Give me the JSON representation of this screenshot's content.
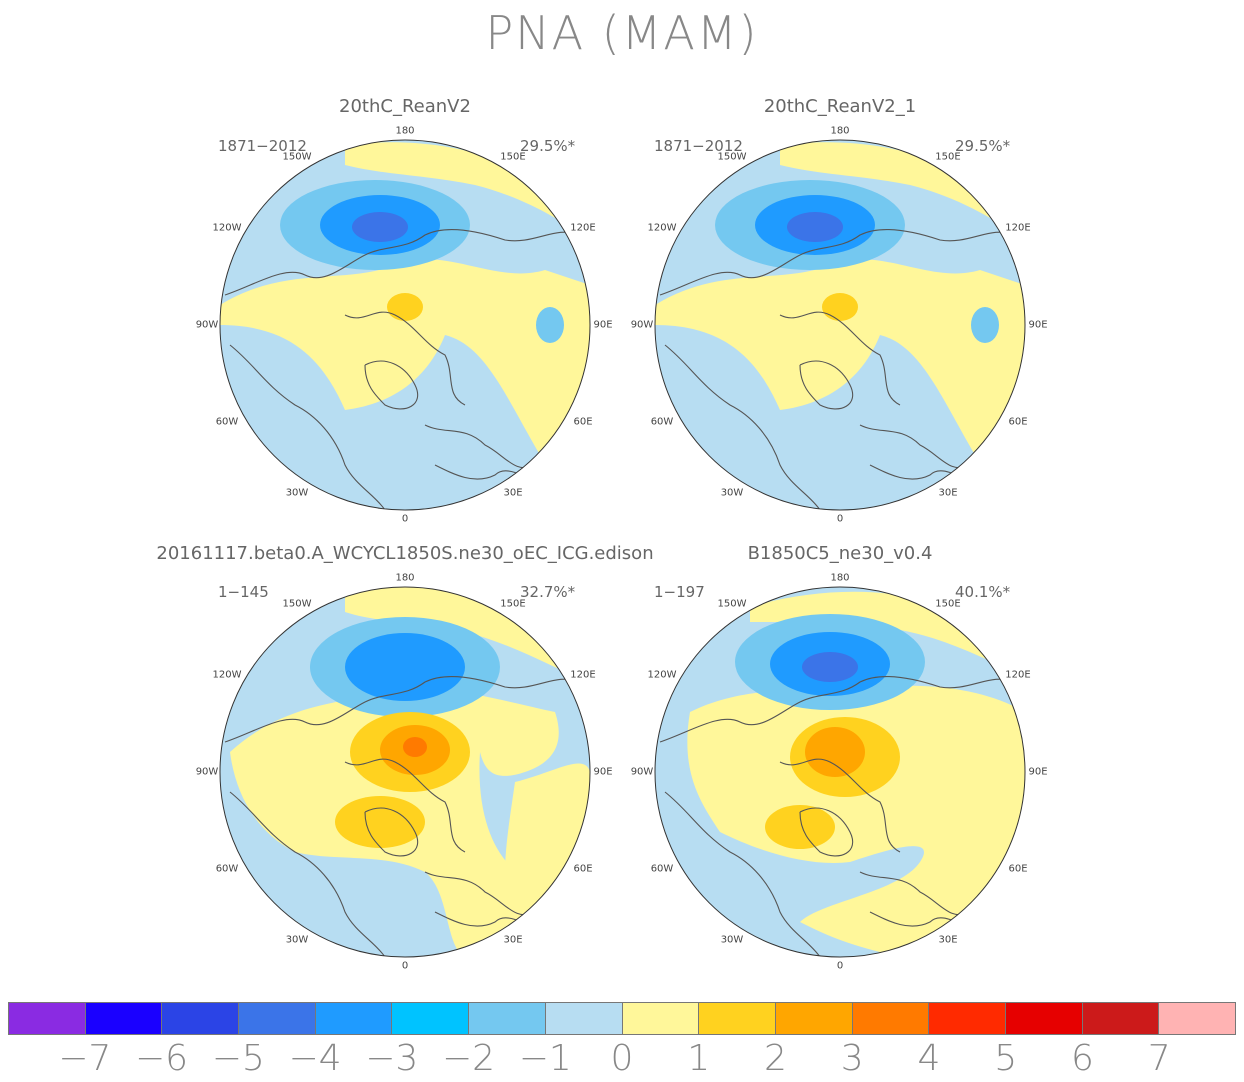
{
  "figure": {
    "title": "PNA (MAM)"
  },
  "lon_labels": [
    "180",
    "150E",
    "120E",
    "90E",
    "60E",
    "30E",
    "0",
    "30W",
    "60W",
    "90W",
    "120W",
    "150W"
  ],
  "panels": [
    {
      "title": "20thC_ReanV2",
      "years": "1871−2012",
      "variance": "29.5%*"
    },
    {
      "title": "20thC_ReanV2_1",
      "years": "1871−2012",
      "variance": "29.5%*"
    },
    {
      "title": "20161117.beta0.A_WCYCL1850S.ne30_oEC_ICG.edison",
      "years": "1−145",
      "variance": "32.7%*"
    },
    {
      "title": "B1850C5_ne30_v0.4",
      "years": "1−197",
      "variance": "40.1%*"
    }
  ],
  "colorbar": {
    "colors": [
      "#8a2be2",
      "#1a00ff",
      "#2b44e6",
      "#3b74e8",
      "#1f9bff",
      "#00c3ff",
      "#74c8f0",
      "#b7ddf2",
      "#fff79a",
      "#ffd21f",
      "#ffa600",
      "#ff7a00",
      "#ff2a00",
      "#e60000",
      "#cc1a1a",
      "#ffb3b3"
    ],
    "labels": [
      "−7",
      "−6",
      "−5",
      "−4",
      "−3",
      "−2",
      "−1",
      "0",
      "1",
      "2",
      "3",
      "4",
      "5",
      "6",
      "7"
    ]
  },
  "map_colors": {
    "neg1": "#b7ddf2",
    "neg2": "#74c8f0",
    "neg3": "#1f9bff",
    "neg4": "#3b74e8",
    "pos1": "#fff79a",
    "pos2": "#ffd21f",
    "pos3": "#ffa600",
    "pos4": "#ff7a00",
    "coast": "#555555"
  }
}
